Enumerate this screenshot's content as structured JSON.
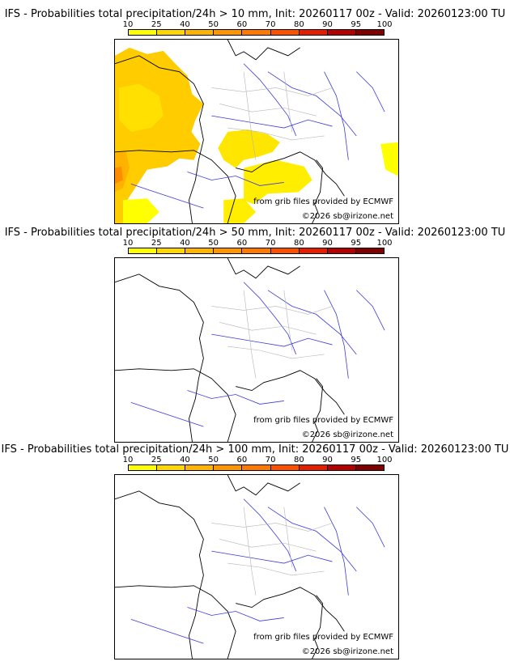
{
  "panels": [
    {
      "title": "IFS - Probabilities total precipitation/24h > 10 mm, Init: 20260117 00z - Valid: 20260123:00 TU",
      "credit_grib": "from grib files provided by ECMWF",
      "credit_copy": "©2026 sb@irizone.net",
      "has_precip": true
    },
    {
      "title": "IFS - Probabilities total precipitation/24h > 50 mm, Init: 20260117 00z - Valid: 20260123:00 TU",
      "credit_grib": "from grib files provided by ECMWF",
      "credit_copy": "©2026 sb@irizone.net",
      "has_precip": false
    },
    {
      "title": "IFS - Probabilities total precipitation/24h > 100 mm, Init: 20260117 00z - Valid: 20260123:00 TU",
      "credit_grib": "from grib files provided by ECMWF",
      "credit_copy": "©2026 sb@irizone.net",
      "has_precip": false
    }
  ],
  "colorbar": {
    "ticks": [
      "10",
      "25",
      "40",
      "50",
      "60",
      "70",
      "80",
      "90",
      "95",
      "100"
    ],
    "colors": [
      "#ffff00",
      "#ffd700",
      "#ffb400",
      "#ff9600",
      "#ff7800",
      "#ff5000",
      "#e61e00",
      "#b40000",
      "#800000"
    ]
  }
}
